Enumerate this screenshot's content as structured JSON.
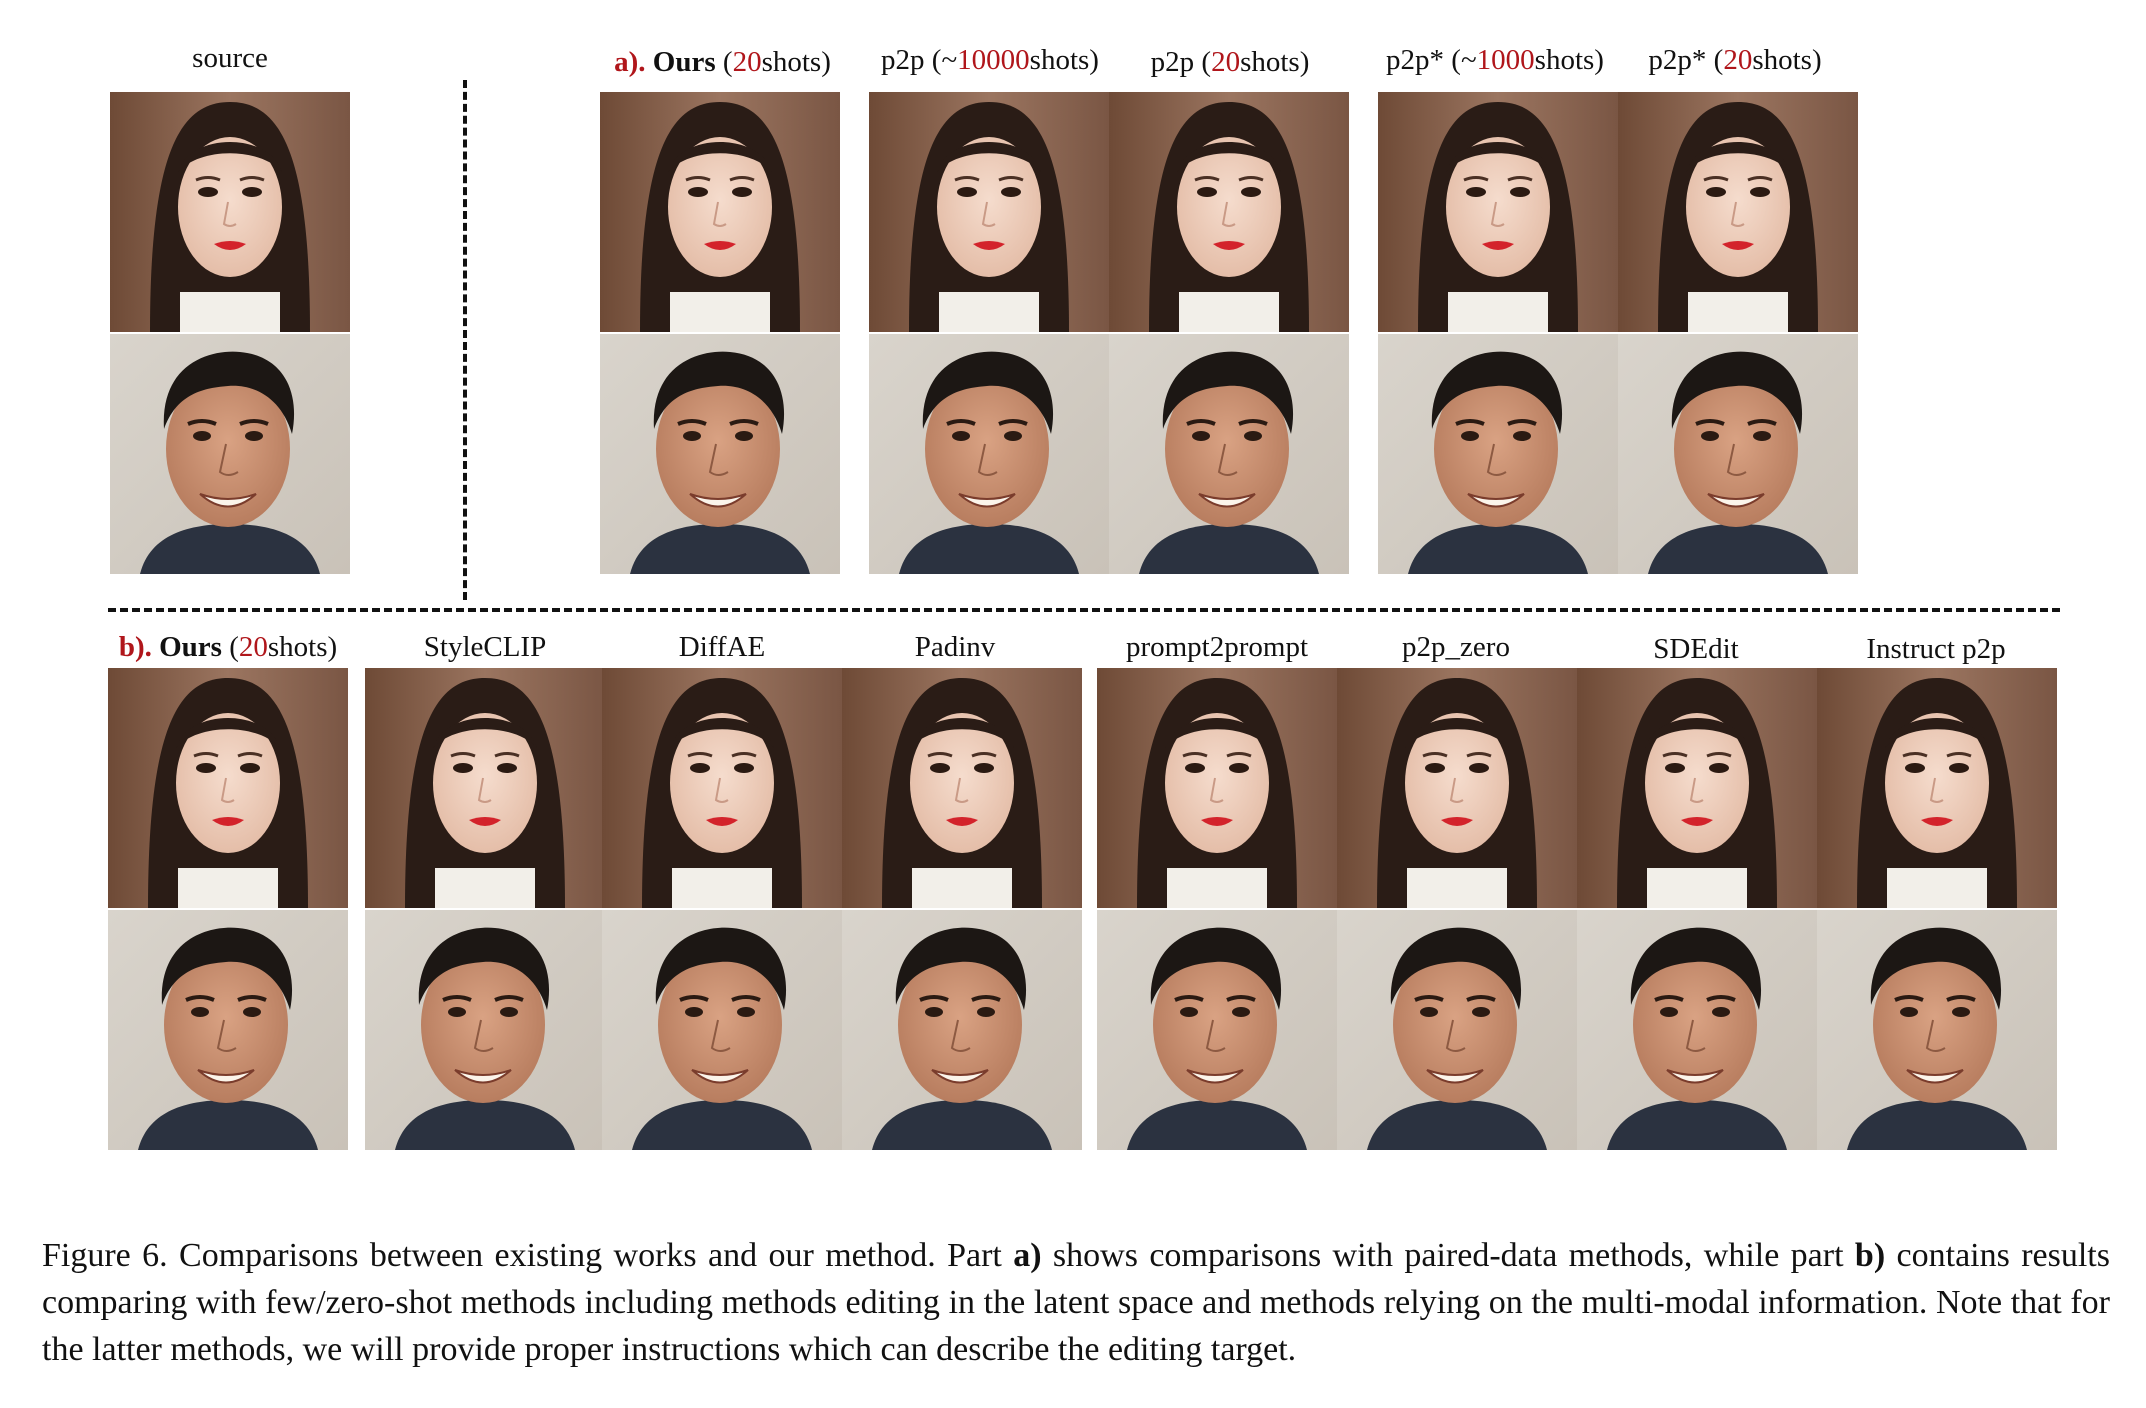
{
  "figure": {
    "section_a": {
      "source_label": "source",
      "prefix": "a).",
      "columns": [
        {
          "name": "Ours",
          "open": " (",
          "count": "20",
          "suffix": "shots)"
        },
        {
          "name": "p2p",
          "open": " (~",
          "count": "10000",
          "suffix": "shots)"
        },
        {
          "name": "p2p",
          "open": " (",
          "count": "20",
          "suffix": "shots)"
        },
        {
          "name": "p2p*",
          "open": " (~",
          "count": "1000",
          "suffix": "shots)"
        },
        {
          "name": "p2p*",
          "open": " (",
          "count": "20",
          "suffix": "shots)"
        }
      ]
    },
    "section_b": {
      "prefix": "b).",
      "ours": {
        "name": "Ours",
        "open": " (",
        "count": "20",
        "suffix": "shots)"
      },
      "methods": [
        "StyleCLIP",
        "DiffAE",
        "Padinv",
        "prompt2prompt",
        "p2p_zero",
        "SDEdit",
        "Instruct p2p"
      ]
    },
    "colors": {
      "accent_red": "#b0161b"
    },
    "caption": {
      "start": "Figure 6. Comparisons between existing works and our method. Part ",
      "part_a": "a)",
      "mid": " shows comparisons with paired-data methods, while part ",
      "part_b": "b)",
      "end": " contains results comparing with few/zero-shot methods including methods editing in the latent space and methods relying on the multi-modal information. Note that for the latter methods, we will provide proper instructions which can describe the editing target."
    }
  }
}
